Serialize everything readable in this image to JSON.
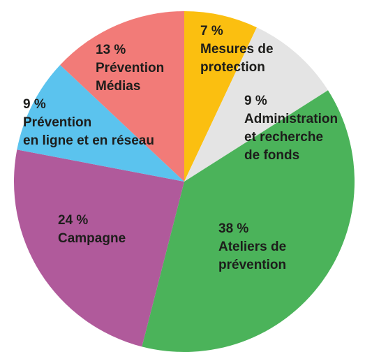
{
  "chart_data": {
    "type": "pie",
    "categories": [
      [
        "Mesures de",
        "protection"
      ],
      [
        "Administration",
        "et recherche",
        "de fonds"
      ],
      [
        "Ateliers de",
        "prévention"
      ],
      [
        "Campagne"
      ],
      [
        "Prévention",
        "en ligne et en réseau"
      ],
      [
        "Prévention",
        "Médias"
      ]
    ],
    "values": [
      7,
      9,
      38,
      24,
      9,
      13
    ],
    "value_labels": [
      "7 %",
      "9 %",
      "38 %",
      "24 %",
      "9 %",
      "13 %"
    ],
    "colors": [
      "#fbbf10",
      "#e4e4e4",
      "#4bb35a",
      "#b05a9b",
      "#5bc3ee",
      "#f27b78"
    ]
  }
}
